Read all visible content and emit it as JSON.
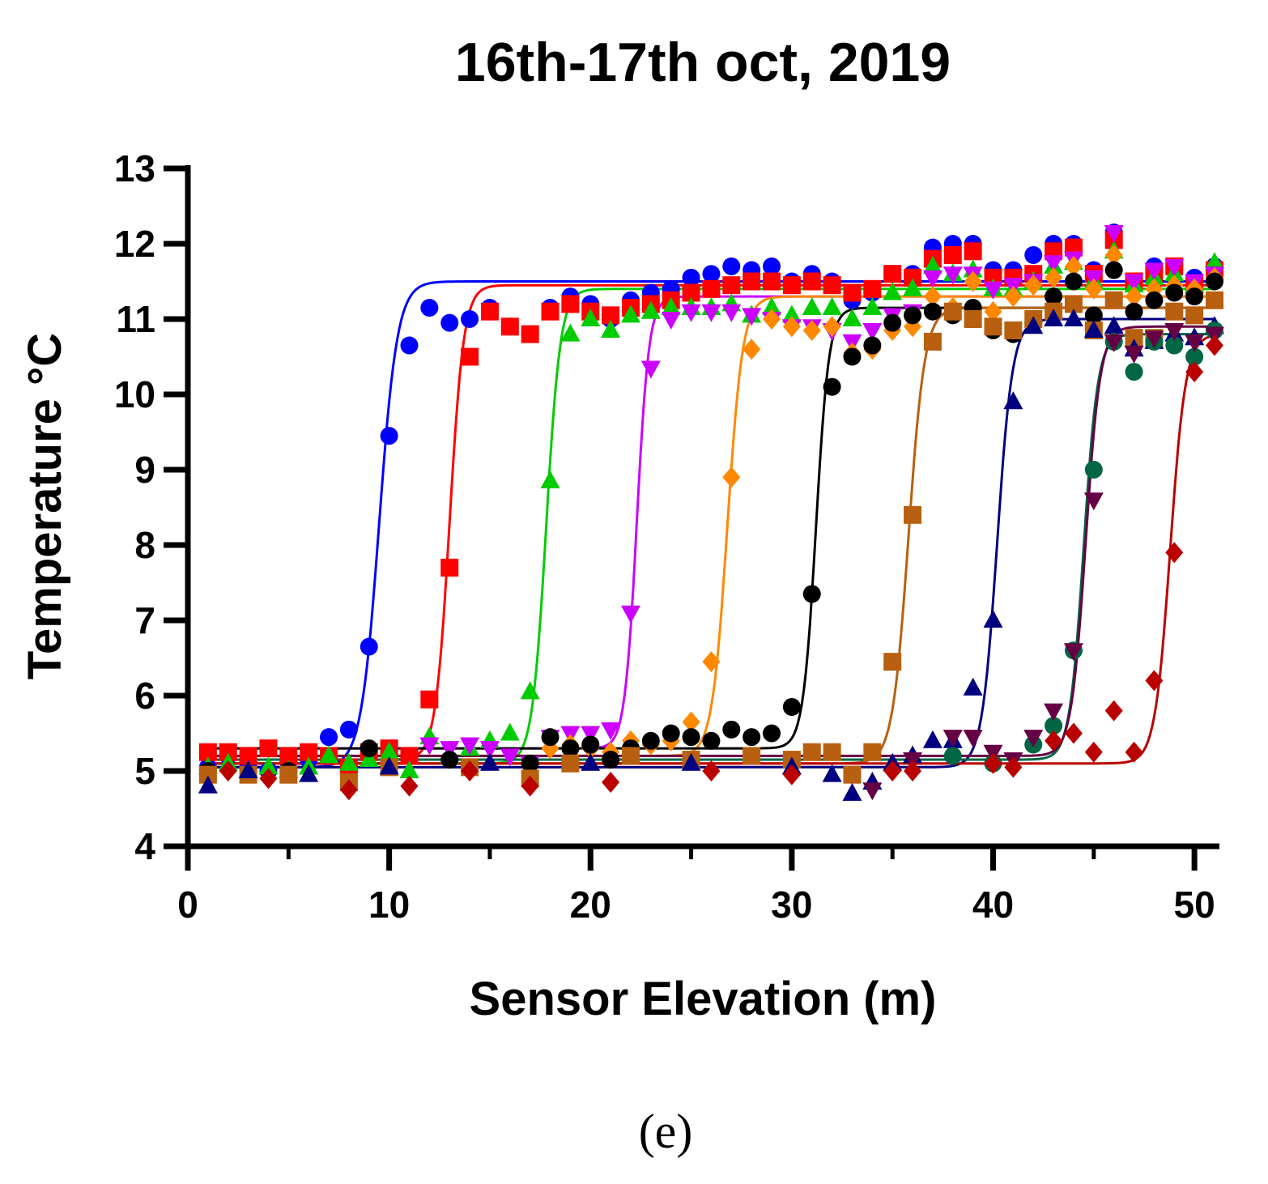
{
  "chart_data": {
    "type": "scatter",
    "title": "16th-17th oct, 2019",
    "xlabel": "Sensor Elevation (m)",
    "ylabel": "Temperature °C",
    "caption": "(e)",
    "xlim": [
      0,
      51
    ],
    "ylim": [
      4,
      13
    ],
    "xticks": [
      "0",
      "10",
      "20",
      "30",
      "40",
      "50"
    ],
    "yticks": [
      "4",
      "5",
      "6",
      "7",
      "8",
      "9",
      "10",
      "11",
      "12",
      "13"
    ],
    "grid": false,
    "series": [
      {
        "name": "blue circles",
        "color": "#0000ff",
        "marker": "circle",
        "fit": {
          "low": 5.05,
          "high": 11.5,
          "center": 9.5,
          "slope": 0.45
        },
        "x": [
          1,
          2,
          3,
          4,
          5,
          6,
          7,
          8,
          9,
          10,
          11,
          12,
          13,
          14,
          15,
          16,
          17,
          18,
          19,
          20,
          21,
          22,
          23,
          24,
          25,
          26,
          27,
          28,
          29,
          30,
          31,
          32,
          33,
          34,
          35,
          36,
          37,
          38,
          39,
          40,
          41,
          42,
          43,
          44,
          45,
          46,
          47,
          48,
          49,
          50,
          51
        ],
        "y": [
          5.05,
          5.2,
          5.05,
          5.0,
          5.12,
          5.15,
          5.45,
          5.55,
          6.65,
          9.45,
          10.65,
          11.15,
          10.95,
          11.0,
          11.15,
          10.9,
          10.8,
          11.15,
          11.3,
          11.2,
          11.0,
          11.25,
          11.35,
          11.4,
          11.55,
          11.6,
          11.7,
          11.65,
          11.7,
          11.5,
          11.6,
          11.5,
          11.25,
          11.35,
          11.6,
          11.6,
          11.95,
          12.0,
          12.0,
          11.65,
          11.65,
          11.85,
          12.0,
          12.0,
          11.65,
          12.15,
          11.5,
          11.7,
          11.7,
          11.55,
          11.7
        ]
      },
      {
        "name": "red squares",
        "color": "#ff0000",
        "marker": "square",
        "fit": {
          "low": 5.15,
          "high": 11.45,
          "center": 13.0,
          "slope": 0.35
        },
        "x": [
          1,
          2,
          3,
          4,
          5,
          6,
          7,
          8,
          9,
          10,
          11,
          12,
          13,
          14,
          15,
          16,
          17,
          18,
          19,
          20,
          21,
          22,
          23,
          24,
          25,
          26,
          27,
          28,
          29,
          30,
          31,
          32,
          33,
          34,
          35,
          36,
          37,
          38,
          39,
          40,
          41,
          42,
          43,
          44,
          45,
          46,
          47,
          48,
          49,
          50,
          51
        ],
        "y": [
          5.25,
          5.25,
          5.2,
          5.3,
          5.2,
          5.25,
          5.2,
          5.05,
          5.25,
          5.3,
          5.2,
          5.95,
          7.7,
          10.5,
          11.1,
          10.9,
          10.8,
          11.1,
          11.2,
          11.1,
          11.05,
          11.15,
          11.2,
          11.25,
          11.35,
          11.4,
          11.45,
          11.5,
          11.5,
          11.45,
          11.5,
          11.45,
          11.35,
          11.4,
          11.6,
          11.55,
          11.8,
          11.85,
          11.9,
          11.55,
          11.55,
          11.6,
          11.9,
          11.95,
          11.6,
          12.05,
          11.5,
          11.6,
          11.7,
          11.45,
          11.65
        ]
      },
      {
        "name": "green triangles",
        "color": "#00cc00",
        "marker": "triangle",
        "fit": {
          "low": 5.1,
          "high": 11.4,
          "center": 17.8,
          "slope": 0.35
        },
        "x": [
          1,
          2,
          3,
          4,
          5,
          6,
          7,
          8,
          9,
          10,
          11,
          12,
          13,
          14,
          15,
          16,
          17,
          18,
          19,
          20,
          21,
          22,
          23,
          24,
          25,
          26,
          27,
          28,
          29,
          30,
          31,
          32,
          33,
          34,
          35,
          36,
          37,
          38,
          39,
          40,
          41,
          42,
          43,
          44,
          45,
          46,
          47,
          48,
          49,
          50,
          51
        ],
        "y": [
          5.05,
          5.1,
          5.0,
          5.05,
          5.0,
          5.05,
          5.2,
          5.1,
          5.15,
          5.25,
          5.0,
          5.45,
          5.2,
          5.3,
          5.4,
          5.5,
          6.05,
          8.85,
          10.8,
          11.0,
          10.85,
          11.05,
          11.1,
          11.15,
          11.15,
          11.15,
          11.2,
          11.05,
          11.15,
          11.05,
          11.15,
          11.15,
          11.0,
          11.15,
          11.35,
          11.4,
          11.7,
          11.6,
          11.65,
          11.4,
          11.4,
          11.5,
          11.7,
          11.75,
          11.5,
          11.9,
          11.45,
          11.55,
          11.6,
          11.45,
          11.75
        ]
      },
      {
        "name": "magenta down triangles",
        "color": "#cc00ff",
        "marker": "tri-down",
        "fit": {
          "low": 5.3,
          "high": 11.3,
          "center": 22.3,
          "slope": 0.3
        },
        "x": [
          12,
          13,
          14,
          15,
          16,
          17,
          18,
          19,
          20,
          21,
          22,
          23,
          24,
          25,
          26,
          27,
          28,
          29,
          30,
          31,
          32,
          33,
          34,
          35,
          36,
          37,
          38,
          39,
          40,
          41,
          42,
          43,
          44,
          45,
          46,
          47,
          48,
          49,
          50,
          51
        ],
        "y": [
          5.35,
          5.3,
          5.35,
          5.3,
          5.2,
          5.1,
          5.45,
          5.5,
          5.5,
          5.55,
          7.1,
          10.35,
          11.0,
          11.1,
          11.1,
          11.1,
          11.05,
          11.0,
          10.9,
          10.9,
          10.85,
          10.7,
          10.85,
          11.05,
          11.1,
          11.55,
          11.6,
          11.6,
          11.4,
          11.45,
          11.5,
          11.75,
          11.8,
          11.55,
          12.15,
          11.5,
          11.65,
          11.7,
          11.5,
          11.6
        ]
      },
      {
        "name": "orange diamonds",
        "color": "#ff8800",
        "marker": "diamond",
        "fit": {
          "low": 5.2,
          "high": 11.3,
          "center": 26.8,
          "slope": 0.38
        },
        "x": [
          18,
          19,
          20,
          21,
          22,
          23,
          24,
          25,
          26,
          27,
          28,
          29,
          30,
          31,
          32,
          33,
          34,
          35,
          36,
          37,
          38,
          39,
          40,
          41,
          42,
          43,
          44,
          45,
          46,
          47,
          48,
          49,
          50,
          51
        ],
        "y": [
          5.3,
          5.35,
          5.3,
          5.25,
          5.4,
          5.35,
          5.4,
          5.65,
          6.45,
          8.9,
          10.6,
          11.0,
          10.9,
          10.85,
          10.9,
          10.55,
          10.6,
          10.85,
          10.9,
          11.3,
          11.15,
          11.5,
          11.1,
          11.3,
          11.45,
          11.55,
          11.7,
          11.4,
          11.85,
          11.3,
          11.4,
          11.45,
          11.4,
          11.55
        ]
      },
      {
        "name": "black circles",
        "color": "#000000",
        "marker": "circle",
        "fit": {
          "low": 5.3,
          "high": 11.15,
          "center": 31.2,
          "slope": 0.32
        },
        "x": [
          1,
          5,
          9,
          13,
          17,
          18,
          19,
          20,
          21,
          22,
          23,
          24,
          25,
          26,
          27,
          28,
          29,
          30,
          31,
          32,
          33,
          34,
          35,
          36,
          37,
          38,
          39,
          40,
          41,
          42,
          43,
          44,
          45,
          46,
          47,
          48,
          49,
          50,
          51
        ],
        "y": [
          5.0,
          5.0,
          5.3,
          5.15,
          5.1,
          5.45,
          5.3,
          5.35,
          5.15,
          5.3,
          5.4,
          5.5,
          5.45,
          5.4,
          5.55,
          5.45,
          5.5,
          5.85,
          7.35,
          10.1,
          10.5,
          10.65,
          10.95,
          11.05,
          11.1,
          11.05,
          11.15,
          10.85,
          10.8,
          10.95,
          11.3,
          11.5,
          11.05,
          11.65,
          11.1,
          11.25,
          11.35,
          11.3,
          11.5
        ]
      },
      {
        "name": "brown squares",
        "color": "#b8600f",
        "marker": "square",
        "fit": {
          "low": 5.1,
          "high": 11.15,
          "center": 35.8,
          "slope": 0.4
        },
        "x": [
          1,
          3,
          5,
          8,
          10,
          14,
          17,
          19,
          22,
          25,
          28,
          30,
          31,
          32,
          33,
          34,
          35,
          36,
          37,
          38,
          39,
          40,
          41,
          42,
          43,
          44,
          45,
          46,
          47,
          48,
          49,
          50,
          51
        ],
        "y": [
          4.95,
          4.95,
          4.95,
          4.85,
          5.05,
          5.05,
          4.9,
          5.1,
          5.2,
          5.15,
          5.2,
          5.15,
          5.25,
          5.25,
          4.95,
          5.25,
          6.45,
          8.4,
          10.7,
          11.1,
          11.0,
          10.9,
          10.85,
          11.0,
          11.1,
          11.2,
          10.85,
          11.25,
          10.75,
          10.75,
          11.1,
          11.05,
          11.25
        ]
      },
      {
        "name": "navy triangles",
        "color": "#000080",
        "marker": "triangle",
        "fit": {
          "low": 5.05,
          "high": 11.0,
          "center": 40.2,
          "slope": 0.38
        },
        "x": [
          1,
          3,
          6,
          10,
          15,
          20,
          25,
          30,
          32,
          33,
          34,
          35,
          36,
          37,
          38,
          39,
          40,
          41,
          42,
          43,
          44,
          45,
          46,
          47,
          48,
          49,
          50,
          51
        ],
        "y": [
          4.8,
          5.0,
          4.95,
          5.05,
          5.1,
          5.1,
          5.1,
          5.05,
          4.95,
          4.7,
          4.85,
          5.1,
          5.2,
          5.4,
          5.4,
          6.1,
          7.0,
          9.9,
          10.9,
          11.0,
          11.0,
          10.85,
          10.9,
          10.6,
          10.7,
          10.8,
          10.75,
          10.9
        ]
      },
      {
        "name": "dark green circles",
        "color": "#006644",
        "marker": "circle",
        "fit": {
          "low": 5.15,
          "high": 10.8,
          "center": 44.5,
          "slope": 0.35
        },
        "x": [
          38,
          40,
          42,
          43,
          44,
          45,
          46,
          47,
          48,
          49,
          50,
          51
        ],
        "y": [
          5.2,
          5.1,
          5.35,
          5.6,
          6.6,
          9.0,
          10.7,
          10.3,
          10.7,
          10.65,
          10.5,
          10.85
        ]
      },
      {
        "name": "purple down triangles",
        "color": "#660044",
        "marker": "tri-down",
        "fit": {
          "low": 5.2,
          "high": 10.9,
          "center": 44.6,
          "slope": 0.36
        },
        "x": [
          34,
          36,
          38,
          39,
          40,
          41,
          42,
          43,
          44,
          45,
          46,
          47,
          48,
          49,
          50,
          51
        ],
        "y": [
          4.75,
          5.15,
          5.45,
          5.45,
          5.25,
          5.15,
          5.45,
          5.8,
          6.6,
          8.6,
          10.7,
          10.55,
          10.75,
          10.85,
          10.7,
          10.8
        ]
      },
      {
        "name": "dark red diamonds",
        "color": "#bb0000",
        "marker": "diamond",
        "fit": {
          "low": 5.1,
          "high": 10.8,
          "center": 48.8,
          "slope": 0.38
        },
        "x": [
          2,
          4,
          8,
          11,
          14,
          17,
          21,
          26,
          30,
          35,
          36,
          40,
          41,
          43,
          44,
          45,
          46,
          47,
          48,
          49,
          50,
          51
        ],
        "y": [
          5.0,
          4.9,
          4.75,
          4.8,
          5.0,
          4.8,
          4.85,
          5.0,
          4.95,
          5.0,
          5.0,
          5.1,
          5.05,
          5.4,
          5.5,
          5.25,
          5.8,
          5.25,
          6.2,
          7.9,
          10.3,
          10.65
        ]
      }
    ]
  }
}
